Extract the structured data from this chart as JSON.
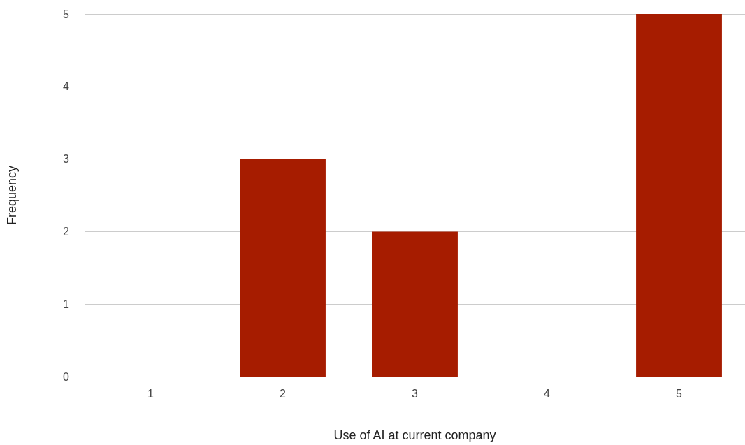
{
  "chart_data": {
    "type": "bar",
    "xlabel": "Use of AI at current company",
    "ylabel": "Frequency",
    "categories": [
      "1",
      "2",
      "3",
      "4",
      "5"
    ],
    "values": [
      0,
      3,
      2,
      0,
      5
    ],
    "color": "#a61c00",
    "ylim": [
      0,
      5
    ],
    "yticks": [
      0,
      1,
      2,
      3,
      4,
      5
    ],
    "grid": "y"
  }
}
